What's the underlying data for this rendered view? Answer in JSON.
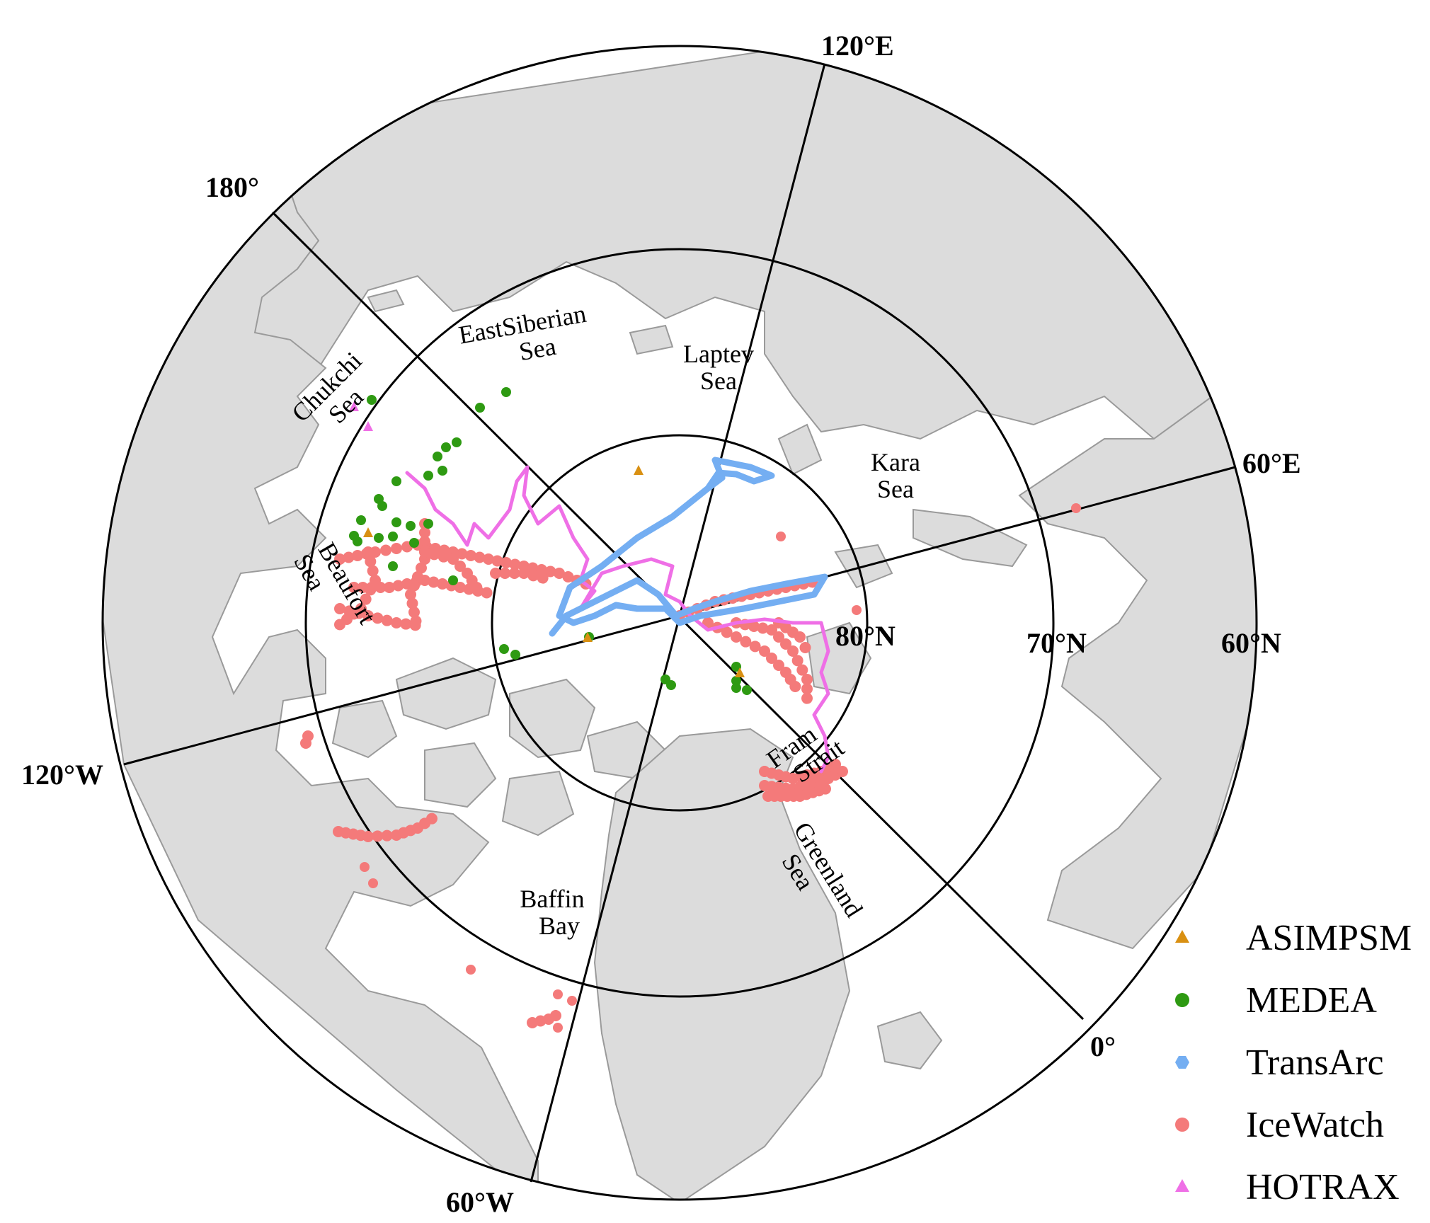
{
  "map": {
    "colors": {
      "land": "#dcdcdc",
      "land_edge": "#9a9a9a",
      "ocean": "#ffffff",
      "grid": "#000000",
      "ASIMPSM": "#d99012",
      "MEDEA": "#2e9a12",
      "TransArc": "#74aef2",
      "IceWatch": "#f47a7a",
      "HOTRAX": "#ef6fe6"
    },
    "meridians": {
      "m120E": "120°E",
      "m180": "180°",
      "m60E": "60°E",
      "m120W": "120°W",
      "m60W": "60°W",
      "m0": "0°"
    },
    "parallels": {
      "p80": "80°N",
      "p70": "70°N",
      "p60": "60°N"
    },
    "seas": {
      "chukchi": [
        "Chukchi",
        "Sea"
      ],
      "east_siberian": [
        "EastSiberian",
        "Sea"
      ],
      "laptev": [
        "Laptev",
        "Sea"
      ],
      "kara": [
        "Kara",
        "Sea"
      ],
      "beaufort": [
        "Beaufort",
        "Sea"
      ],
      "fram": [
        "Fram",
        "Strait"
      ],
      "greenland": [
        "Greenland",
        "Sea"
      ],
      "baffin": [
        "Baffin",
        "Bay"
      ]
    },
    "legend": [
      {
        "name": "ASIMPSM",
        "marker": "triangle",
        "color": "#d99012"
      },
      {
        "name": "MEDEA",
        "marker": "circle",
        "color": "#2e9a12"
      },
      {
        "name": "TransArc",
        "marker": "hexagon",
        "color": "#74aef2"
      },
      {
        "name": "IceWatch",
        "marker": "circle",
        "color": "#f47a7a"
      },
      {
        "name": "HOTRAX",
        "marker": "triangle",
        "color": "#ef6fe6"
      }
    ]
  }
}
